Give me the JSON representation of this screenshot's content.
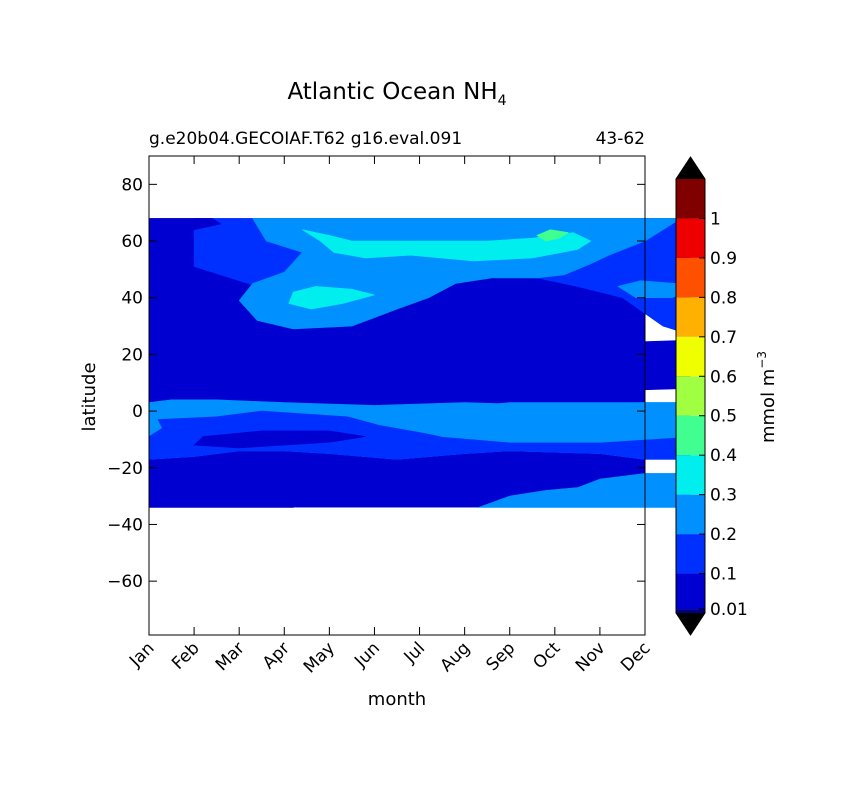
{
  "chart_data": {
    "type": "heatmap",
    "title": "Atlantic Ocean NH",
    "title_subscript": "4",
    "subtitle_left": "g.e20b04.GECOIAF.T62 g16.eval.091",
    "subtitle_right": "43-62",
    "xlabel": "month",
    "ylabel": "latitude",
    "x_ticks": [
      "Jan",
      "Feb",
      "Mar",
      "Apr",
      "May",
      "Jun",
      "Jul",
      "Aug",
      "Sep",
      "Oct",
      "Nov",
      "Dec"
    ],
    "y_ticks": [
      80,
      60,
      40,
      20,
      0,
      -20,
      -40,
      -60
    ],
    "y_tick_labels": [
      "80",
      "60",
      "40",
      "20",
      "0",
      "−20",
      "−40",
      "−60"
    ],
    "ylim": [
      -79,
      90
    ],
    "data_lat_range": [
      -34,
      68
    ],
    "colorbar": {
      "label": "mmol m",
      "label_exponent": "−3",
      "levels": [
        0,
        0.01,
        0.1,
        0.2,
        0.3,
        0.4,
        0.5,
        0.6,
        0.7,
        0.8,
        0.9,
        1,
        1.1
      ],
      "tick_values": [
        0.01,
        0.1,
        0.2,
        0.3,
        0.4,
        0.5,
        0.6,
        0.7,
        0.8,
        0.9,
        1
      ],
      "tick_labels": [
        "0.01",
        "0.1",
        "0.2",
        "0.3",
        "0.4",
        "0.5",
        "0.6",
        "0.7",
        "0.8",
        "0.9",
        "1"
      ],
      "colors": [
        "#000080",
        "#0000d0",
        "#0030ff",
        "#0090ff",
        "#00eeee",
        "#40ff90",
        "#a0ff40",
        "#f0ff00",
        "#ffb000",
        "#ff5000",
        "#ee0000",
        "#800000"
      ],
      "extend": "both",
      "under_color": "#000000",
      "over_color": "#000000"
    },
    "regions": [
      {
        "name": "mid-band-0.1-0.2",
        "level": 2,
        "points": [
          [
            1,
            68
          ],
          [
            12,
            68
          ],
          [
            12,
            27
          ],
          [
            11.4,
            30
          ],
          [
            10.5,
            40
          ],
          [
            9.5,
            44
          ],
          [
            8,
            49
          ],
          [
            7,
            47
          ],
          [
            6,
            42
          ],
          [
            4.5,
            40
          ],
          [
            3,
            41
          ],
          [
            2,
            46
          ],
          [
            1,
            51
          ]
        ]
      },
      {
        "name": "north-band-0.2-0.3",
        "level": 3,
        "points": [
          [
            2.3,
            68
          ],
          [
            11.8,
            68
          ],
          [
            11,
            60
          ],
          [
            10.2,
            55
          ],
          [
            9.8,
            52
          ],
          [
            9.2,
            48
          ],
          [
            8.6,
            47
          ],
          [
            7.6,
            47
          ],
          [
            6.8,
            45
          ],
          [
            6.2,
            40
          ],
          [
            5.5,
            36
          ],
          [
            4.5,
            30
          ],
          [
            3.2,
            29
          ],
          [
            2.4,
            32
          ],
          [
            2.0,
            39
          ],
          [
            2.3,
            45
          ],
          [
            3.0,
            49
          ],
          [
            3.4,
            56
          ],
          [
            2.6,
            60
          ]
        ]
      },
      {
        "name": "north-dec-patch-0.2-0.3",
        "level": 3,
        "points": [
          [
            10.4,
            44
          ],
          [
            10.9,
            46
          ],
          [
            11.7,
            45
          ],
          [
            12,
            43
          ],
          [
            11.6,
            40
          ],
          [
            10.8,
            40
          ]
        ]
      },
      {
        "name": "north-cyan-0.3-0.4",
        "level": 4,
        "points": [
          [
            3.4,
            64
          ],
          [
            4.0,
            62
          ],
          [
            4.5,
            60
          ],
          [
            5.6,
            60
          ],
          [
            7.5,
            60
          ],
          [
            8.5,
            61
          ],
          [
            9.4,
            63
          ],
          [
            9.8,
            60
          ],
          [
            9.5,
            57
          ],
          [
            8.5,
            54
          ],
          [
            7.2,
            53
          ],
          [
            5.8,
            55
          ],
          [
            4.8,
            54
          ],
          [
            4.1,
            56
          ],
          [
            3.8,
            60
          ]
        ]
      },
      {
        "name": "north-cyan-spot-0.3-0.4",
        "level": 4,
        "points": [
          [
            3.2,
            42
          ],
          [
            3.7,
            44
          ],
          [
            4.5,
            43
          ],
          [
            5.0,
            41
          ],
          [
            4.3,
            38
          ],
          [
            3.6,
            36
          ],
          [
            3.1,
            38
          ]
        ]
      },
      {
        "name": "sep-green-0.4-0.5",
        "level": 5,
        "points": [
          [
            8.6,
            62
          ],
          [
            8.9,
            64
          ],
          [
            9.3,
            63
          ],
          [
            9.1,
            61
          ],
          [
            8.8,
            60
          ]
        ]
      },
      {
        "name": "nw-dark-0.01-0.1",
        "level": 1,
        "points": [
          [
            0,
            68
          ],
          [
            1.4,
            68
          ],
          [
            1.6,
            66
          ],
          [
            1.0,
            64
          ],
          [
            0.3,
            63
          ],
          [
            0,
            63
          ]
        ]
      },
      {
        "name": "tropics-0.2-0.3",
        "level": 3,
        "points": [
          [
            0,
            3
          ],
          [
            0.5,
            4
          ],
          [
            1.5,
            4
          ],
          [
            3,
            3
          ],
          [
            5,
            2
          ],
          [
            7,
            3
          ],
          [
            9,
            2
          ],
          [
            11,
            3
          ],
          [
            12,
            3
          ],
          [
            12,
            -17
          ],
          [
            11,
            -17
          ],
          [
            10,
            -15
          ],
          [
            8,
            -14
          ],
          [
            7,
            -15
          ],
          [
            5.5,
            -17
          ],
          [
            4,
            -15
          ],
          [
            3,
            -14
          ],
          [
            2,
            -14
          ],
          [
            1,
            -16
          ],
          [
            0,
            -17
          ]
        ]
      },
      {
        "name": "tropics-inner-0.1-0.2",
        "level": 2,
        "points": [
          [
            0.2,
            -3
          ],
          [
            1.5,
            -2
          ],
          [
            2.5,
            0
          ],
          [
            4.4,
            -2
          ],
          [
            5.1,
            -5
          ],
          [
            6.5,
            -9
          ],
          [
            8,
            -11
          ],
          [
            9.6,
            -10
          ],
          [
            11,
            -9
          ],
          [
            12,
            -9
          ],
          [
            12,
            -17
          ],
          [
            11,
            -17
          ],
          [
            10,
            -15
          ],
          [
            8,
            -14
          ],
          [
            7,
            -15
          ],
          [
            5.5,
            -17
          ],
          [
            4,
            -15
          ],
          [
            3,
            -14
          ],
          [
            2,
            -14
          ],
          [
            1,
            -16
          ],
          [
            0,
            -17
          ],
          [
            0,
            -9
          ],
          [
            0.3,
            -6
          ]
        ]
      },
      {
        "name": "equator-cyan-0.3-0.4",
        "level": 4,
        "points": [
          [
            6.3,
            -3
          ],
          [
            7.3,
            0
          ],
          [
            9,
            2
          ],
          [
            11,
            1
          ],
          [
            12,
            0
          ],
          [
            12,
            -7
          ],
          [
            11,
            -7
          ],
          [
            9.5,
            -8
          ],
          [
            7.8,
            -7
          ],
          [
            6.6,
            -5
          ]
        ]
      },
      {
        "name": "equator-lightblue-0.2-0.3",
        "level": 3,
        "points": [
          [
            5,
            -2
          ],
          [
            6,
            0
          ],
          [
            8,
            3
          ],
          [
            10,
            3
          ],
          [
            12,
            3
          ],
          [
            12,
            -9
          ],
          [
            10,
            -11
          ],
          [
            8,
            -11
          ],
          [
            6.5,
            -9
          ],
          [
            5.4,
            -5
          ]
        ]
      },
      {
        "name": "south-band-0.2-0.3",
        "level": 3,
        "points": [
          [
            7.3,
            -34
          ],
          [
            12,
            -34
          ],
          [
            12,
            -22
          ],
          [
            11,
            -22
          ],
          [
            10,
            -24
          ],
          [
            9.5,
            -27
          ],
          [
            8.8,
            -28
          ],
          [
            8,
            -30
          ]
        ]
      },
      {
        "name": "sw-dark-0.01-0.1",
        "level": 1,
        "points": [
          [
            0,
            -25
          ],
          [
            1.2,
            -26
          ],
          [
            2.5,
            -27
          ],
          [
            3.4,
            -31
          ],
          [
            3.2,
            -34
          ],
          [
            0,
            -34
          ]
        ]
      },
      {
        "name": "west-lowlat-0.01-0.1",
        "level": 1,
        "points": [
          [
            0,
            26
          ],
          [
            2,
            25
          ],
          [
            4,
            23
          ],
          [
            6,
            22
          ],
          [
            8,
            24
          ],
          [
            10,
            24
          ],
          [
            12,
            25
          ],
          [
            12,
            8
          ],
          [
            10,
            7
          ],
          [
            8,
            6
          ],
          [
            6,
            7
          ],
          [
            4,
            8
          ],
          [
            2,
            8
          ],
          [
            0,
            8
          ]
        ]
      },
      {
        "name": "west-eq-dark-0.01-0.1",
        "level": 1,
        "points": [
          [
            1.2,
            -9
          ],
          [
            2.5,
            -7
          ],
          [
            4,
            -7
          ],
          [
            4.8,
            -9
          ],
          [
            4,
            -11
          ],
          [
            2,
            -13
          ],
          [
            1,
            -12
          ]
        ]
      }
    ]
  }
}
